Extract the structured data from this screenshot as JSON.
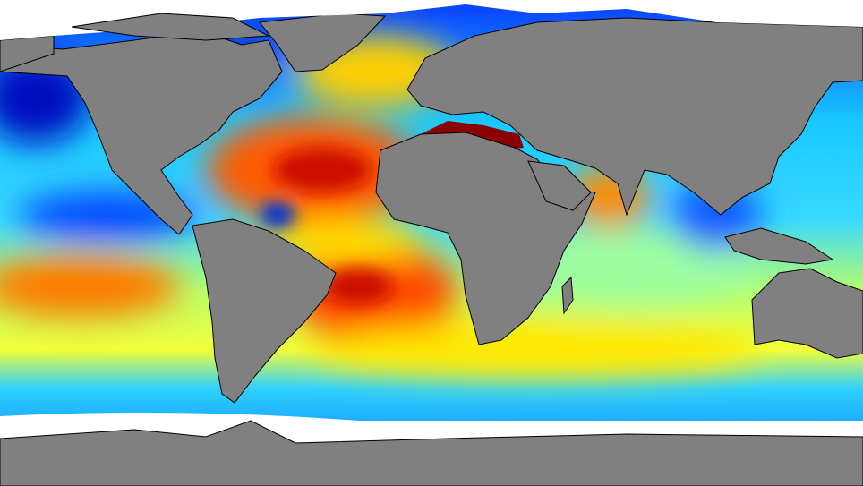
{
  "map": {
    "type": "global sea surface salinity field",
    "projection": "equirectangular",
    "colormap": [
      "#00008b",
      "#0033ff",
      "#00c8ff",
      "#7fffb0",
      "#ffff00",
      "#ff9900",
      "#ff2200",
      "#8b0000"
    ],
    "land_color": "#808080",
    "ice_no_data_color": "#ffffff",
    "coastline_color": "#000000"
  }
}
